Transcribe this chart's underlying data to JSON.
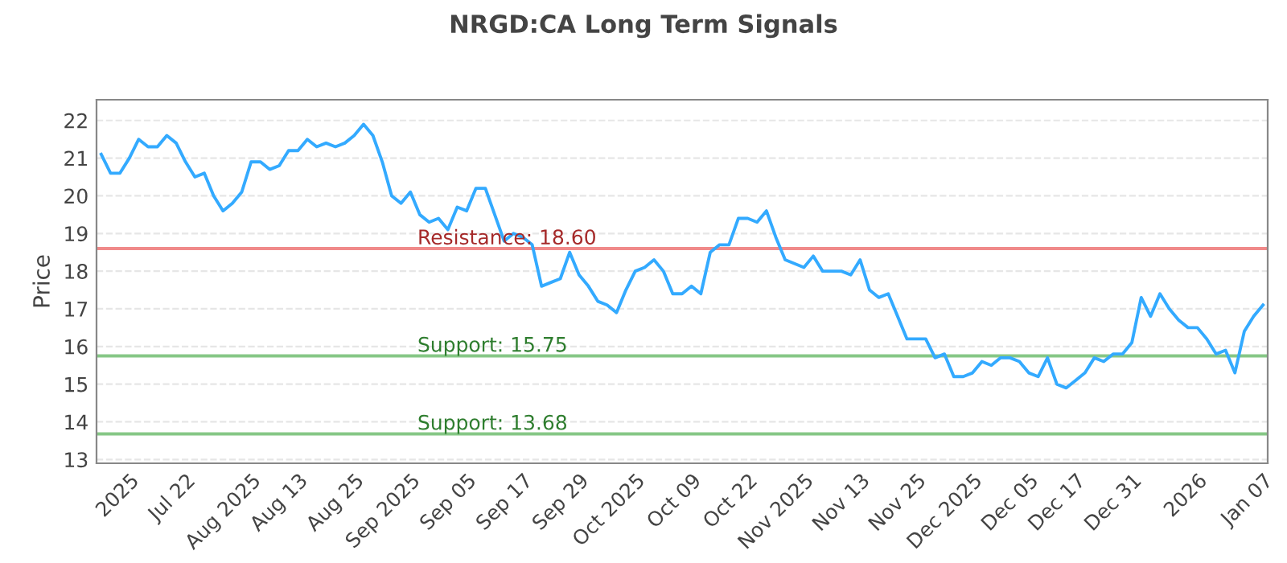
{
  "chart_data": {
    "type": "line",
    "title": "NRGD:CA Long Term Signals",
    "ylabel": "Price",
    "categories": [
      null,
      null,
      null,
      "2025",
      null,
      null,
      null,
      null,
      null,
      "Jul 22",
      null,
      null,
      null,
      null,
      null,
      null,
      "Aug 2025",
      null,
      null,
      null,
      null,
      "Aug 13",
      null,
      null,
      null,
      null,
      null,
      "Aug 25",
      null,
      null,
      null,
      null,
      null,
      "Sep 2025",
      null,
      null,
      null,
      null,
      null,
      "Sep 05",
      null,
      null,
      null,
      null,
      null,
      "Sep 17",
      null,
      null,
      null,
      null,
      null,
      "Sep 29",
      null,
      null,
      null,
      null,
      null,
      "Oct 2025",
      null,
      null,
      null,
      null,
      null,
      "Oct 09",
      null,
      null,
      null,
      null,
      null,
      "Oct 22",
      null,
      null,
      null,
      null,
      null,
      "Nov 2025",
      null,
      null,
      null,
      null,
      null,
      "Nov 13",
      null,
      null,
      null,
      null,
      null,
      "Nov 25",
      null,
      null,
      null,
      null,
      null,
      "Dec 2025",
      null,
      null,
      null,
      null,
      null,
      "Dec 05",
      null,
      null,
      null,
      null,
      "Dec 17",
      null,
      null,
      null,
      null,
      null,
      "Dec 31",
      null,
      null,
      null,
      null,
      null,
      null,
      "2026",
      null,
      null,
      null,
      null,
      null,
      null,
      "Jan 07"
    ],
    "series": [
      {
        "color": "#33aaff",
        "values": [
          21.1,
          20.6,
          20.6,
          21.0,
          21.5,
          21.3,
          21.3,
          21.6,
          21.4,
          20.9,
          20.5,
          20.6,
          20.0,
          19.6,
          19.8,
          20.1,
          20.9,
          20.9,
          20.7,
          20.8,
          21.2,
          21.2,
          21.5,
          21.3,
          21.4,
          21.3,
          21.4,
          21.6,
          21.9,
          21.6,
          20.9,
          20.0,
          19.8,
          20.1,
          19.5,
          19.3,
          19.4,
          19.1,
          19.7,
          19.6,
          20.2,
          20.2,
          19.5,
          18.8,
          19.0,
          18.9,
          18.7,
          17.6,
          17.7,
          17.8,
          18.5,
          17.9,
          17.6,
          17.2,
          17.1,
          16.9,
          17.5,
          18.0,
          18.1,
          18.3,
          18.0,
          17.4,
          17.4,
          17.6,
          17.4,
          18.5,
          18.7,
          18.7,
          19.4,
          19.4,
          19.3,
          19.6,
          18.9,
          18.3,
          18.2,
          18.1,
          18.4,
          18.0,
          18.0,
          18.0,
          17.9,
          18.3,
          17.5,
          17.3,
          17.4,
          16.8,
          16.2,
          16.2,
          16.2,
          15.7,
          15.8,
          15.2,
          15.2,
          15.3,
          15.6,
          15.5,
          15.7,
          15.7,
          15.6,
          15.3,
          15.2,
          15.7,
          15.0,
          14.9,
          15.1,
          15.3,
          15.7,
          15.6,
          15.8,
          15.8,
          16.1,
          17.3,
          16.8,
          17.4,
          17.0,
          16.7,
          16.5,
          16.5,
          16.2,
          15.8,
          15.9,
          15.3,
          16.4,
          16.8,
          17.1
        ]
      }
    ],
    "ylim": [
      12.9,
      22.55
    ],
    "yticks": [
      13,
      14,
      15,
      16,
      17,
      18,
      19,
      20,
      21,
      22
    ],
    "grid": "y",
    "legend": false,
    "marker": "none",
    "line_style": "solid",
    "ref_lines": [
      {
        "axis": "y",
        "value": 18.6,
        "label": "Resistance: 18.60",
        "color": "#f08a8a"
      },
      {
        "axis": "y",
        "value": 15.75,
        "label": "Support: 15.75",
        "color": "#86c786"
      },
      {
        "axis": "y",
        "value": 13.68,
        "label": "Support: 13.68",
        "color": "#86c786"
      }
    ]
  }
}
